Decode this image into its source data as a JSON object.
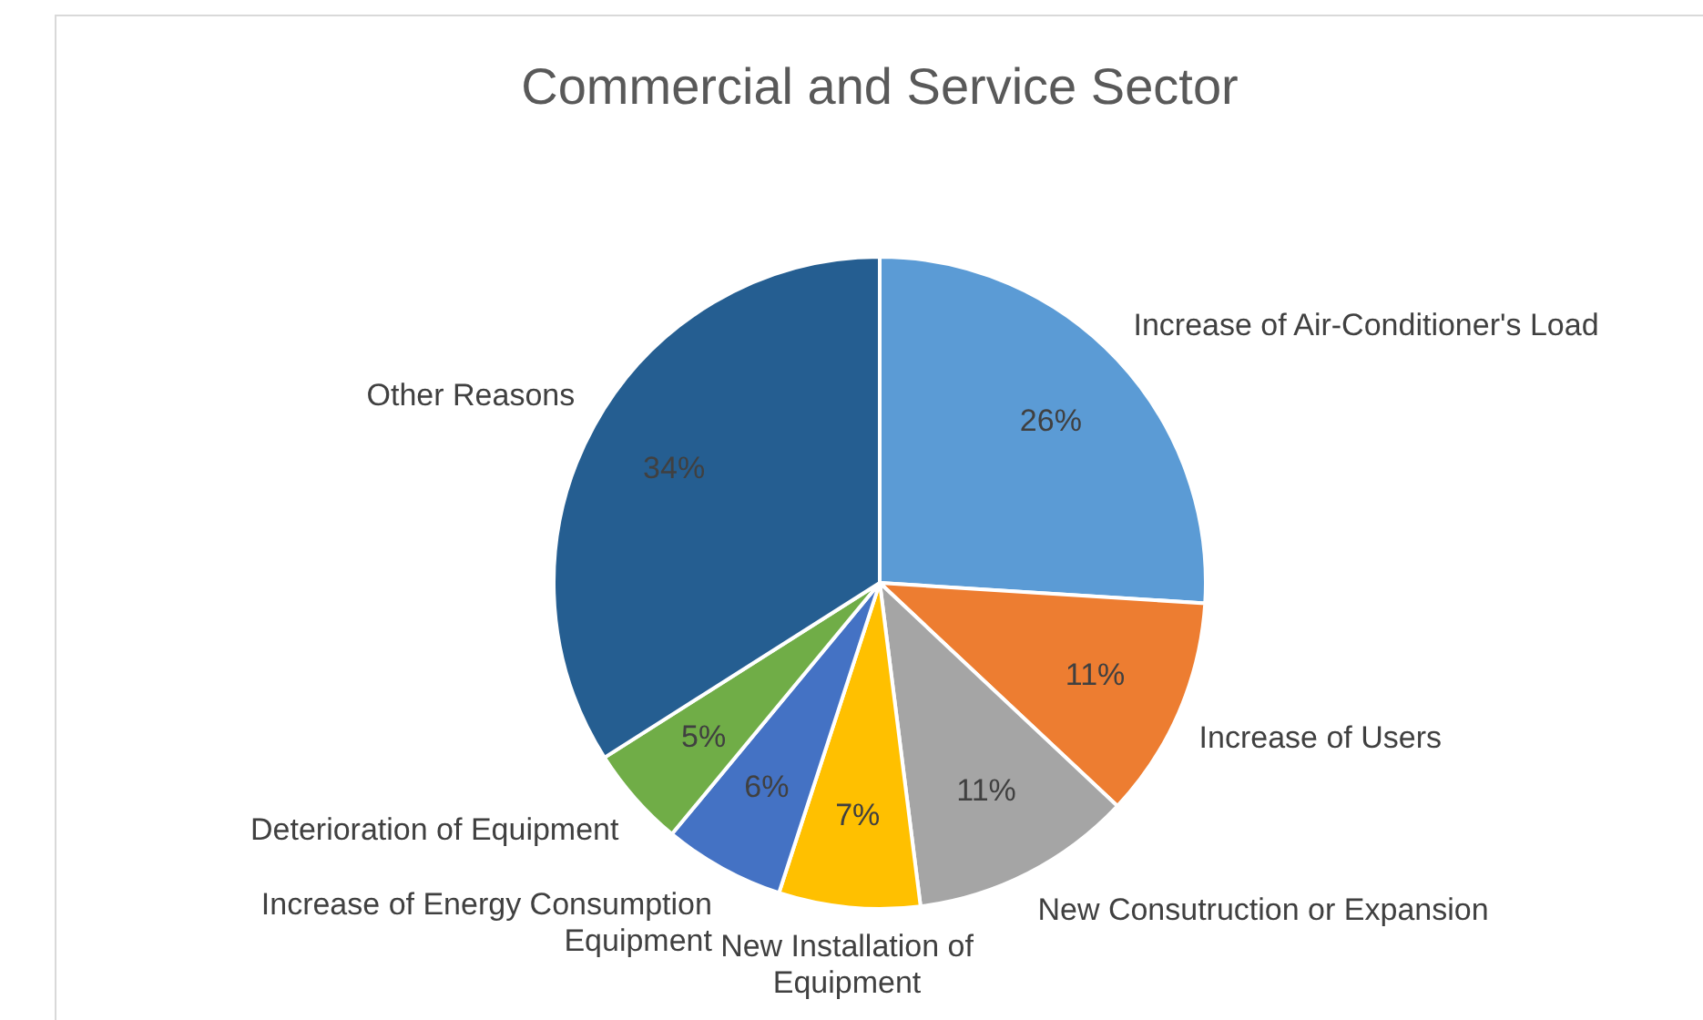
{
  "chart_data": {
    "type": "pie",
    "title": "Commercial and Service Sector",
    "categories": [
      "Increase of Air-Conditioner's Load",
      "Increase of Users",
      "New Consutruction or Expansion",
      "New Installation of Equipment",
      "Increase of Energy Consumption Equipment",
      "Deterioration of Equipment",
      "Other Reasons"
    ],
    "values": [
      26,
      11,
      11,
      7,
      6,
      5,
      34
    ],
    "colors": [
      "#5b9bd5",
      "#ed7d31",
      "#a5a5a5",
      "#ffc000",
      "#4472c4",
      "#70ad47",
      "#255e91"
    ],
    "value_labels": [
      "26%",
      "11%",
      "11%",
      "7%",
      "6%",
      "5%",
      "34%"
    ]
  }
}
